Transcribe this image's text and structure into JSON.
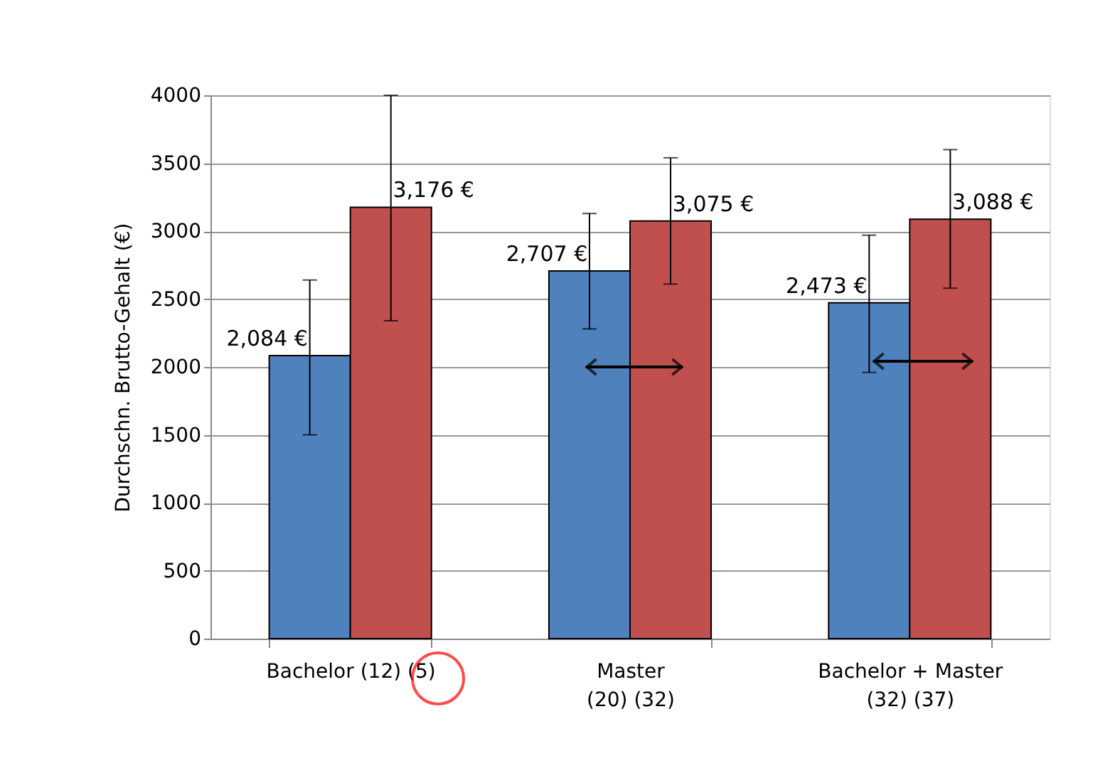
{
  "chart_data": {
    "type": "bar",
    "categories": [
      "Bachelor (12) (5)",
      "Master\n(20) (32)",
      "Bachelor + Master\n(32) (37)"
    ],
    "series": [
      {
        "color": "#4f81bd",
        "values": [
          2084,
          2707,
          2473
        ],
        "value_labels": [
          "2,084 €",
          "2,707 €",
          "2,473 €"
        ],
        "errors": [
          [
            1500,
            2640
          ],
          [
            2280,
            3130
          ],
          [
            1960,
            2970
          ]
        ]
      },
      {
        "color": "#c0504d",
        "values": [
          3176,
          3075,
          3088
        ],
        "value_labels": [
          "3,176 €",
          "3,075 €",
          "3,088 €"
        ],
        "errors": [
          [
            2340,
            4000
          ],
          [
            2610,
            3540
          ],
          [
            2580,
            3600
          ]
        ]
      }
    ],
    "ylabel": "Durchschn. Brutto-Gehalt (€)",
    "ylim": [
      0,
      4000
    ],
    "yticks": [
      0,
      500,
      1000,
      1500,
      2000,
      2500,
      3000,
      3500,
      4000
    ],
    "grid": "y",
    "legend": false
  }
}
